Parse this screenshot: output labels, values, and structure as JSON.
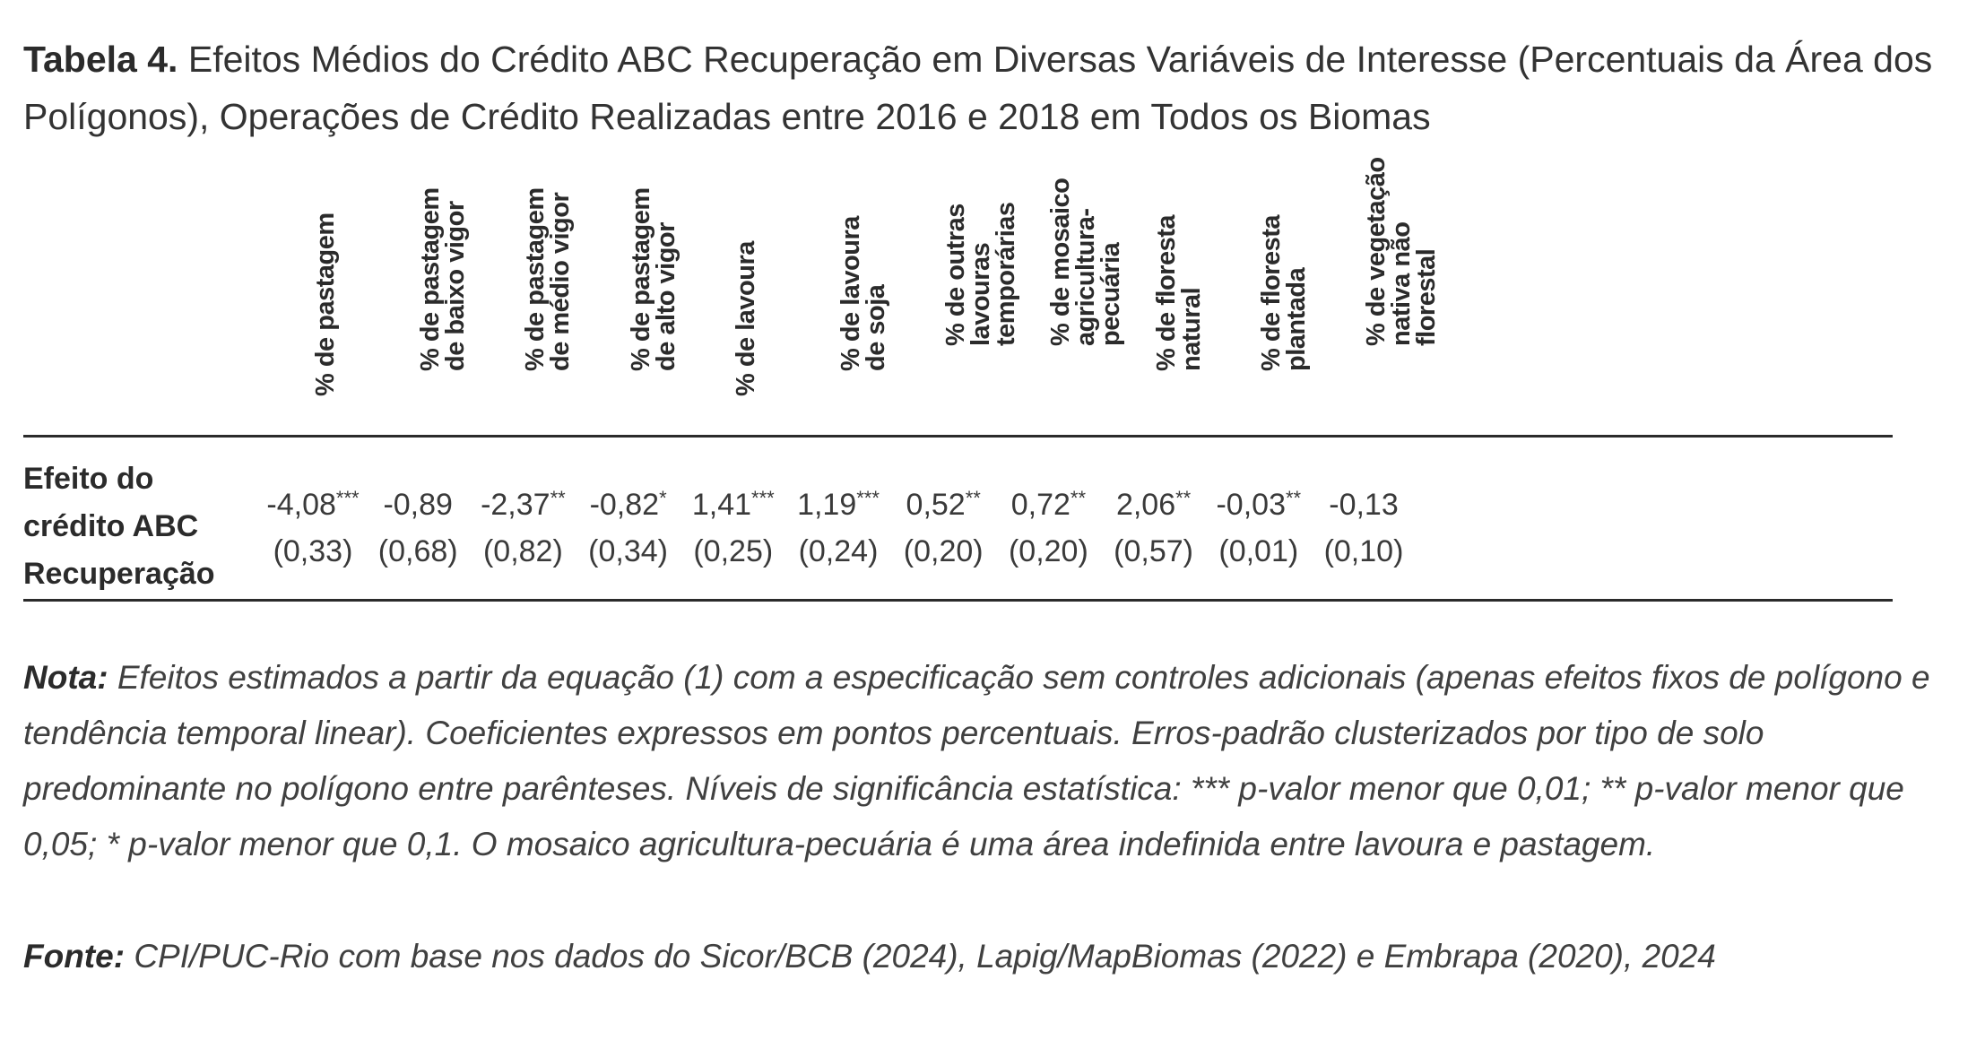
{
  "caption": {
    "label": "Tabela 4.",
    "text": "Efeitos Médios do Crédito ABC Recuperação em Diversas Variáveis de Interesse (Percentuais da Área dos Polígonos), Operações de Crédito Realizadas entre 2016 e 2018 em Todos os Biomas"
  },
  "table": {
    "columns": [
      "% de pastagem",
      "% de pastagem\nde baixo vigor",
      "% de pastagem\nde médio vigor",
      "% de pastagem\nde alto vigor",
      "% de lavoura",
      "% de lavoura\nde soja",
      "% de outras\nlavouras\ntemporárias",
      "% de mosaico\nagricultura-\npecuária",
      "% de floresta\nnatural",
      "% de floresta\nplantada",
      "% de vegetação\nnativa não\nflorestal"
    ],
    "row_label": "Efeito do crédito ABC Recuperação",
    "estimates": [
      "-4,08",
      "-0,89",
      "-2,37",
      "-0,82",
      "1,41",
      "1,19",
      "0,52",
      "0,72",
      "2,06",
      "-0,03",
      "-0,13"
    ],
    "significance": [
      "***",
      "",
      "**",
      "*",
      "***",
      "***",
      "**",
      "**",
      "**",
      "**",
      ""
    ],
    "std_errors": [
      "(0,33)",
      "(0,68)",
      "(0,82)",
      "(0,34)",
      "(0,25)",
      "(0,24)",
      "(0,20)",
      "(0,20)",
      "(0,57)",
      "(0,01)",
      "(0,10)"
    ]
  },
  "note": {
    "label": "Nota:",
    "text": "Efeitos estimados a partir da equação (1) com a especificação sem controles adicionais (apenas efeitos fixos de polígono e tendência temporal linear). Coeficientes expressos em pontos percentuais. Erros-padrão clusterizados por tipo de solo predominante no polígono entre parênteses. Níveis de significância estatística: *** p-valor menor que 0,01; ** p-valor menor que 0,05; * p-valor menor que 0,1. O mosaico agricultura-pecuária é uma área indefinida entre lavoura e pastagem."
  },
  "source": {
    "label": "Fonte:",
    "text": "CPI/PUC-Rio com base nos dados do Sicor/BCB (2024), Lapig/MapBiomas (2022) e Embrapa (2020), 2024"
  }
}
